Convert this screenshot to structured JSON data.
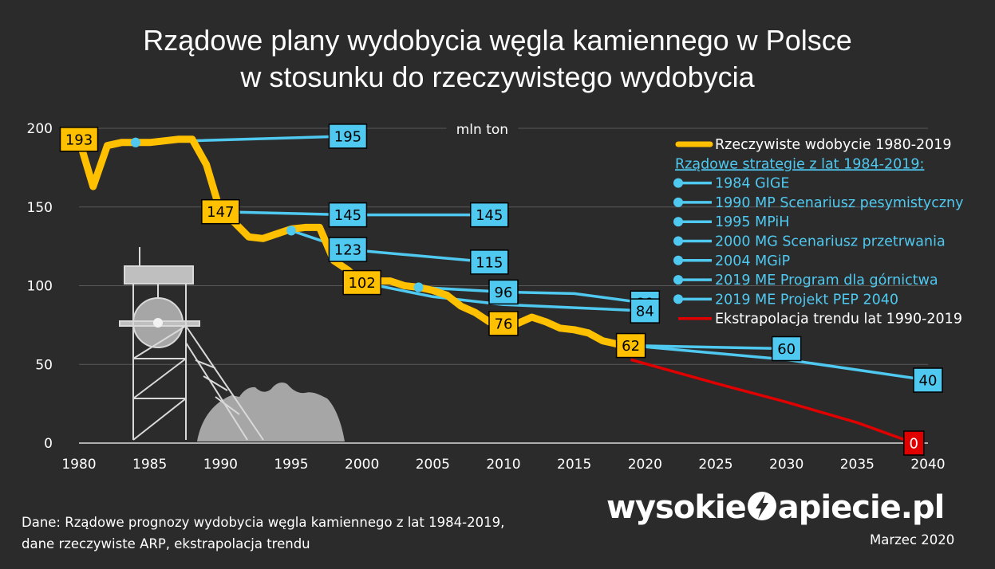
{
  "title_line1": "Rządowe plany wydobycia węgla kamiennego w Polsce",
  "title_line2": "w stosunku do rzeczywistego wydobycia",
  "source_line1": "Dane: Rządowe prognozy wydobycia węgla kamiennego z lat 1984-2019,",
  "source_line2": "dane rzeczywiste ARP, ekstrapolacja trendu",
  "brand_left": "wysokie",
  "brand_right": "apiecie.pl",
  "date": "Marzec 2020",
  "colors": {
    "background": "#2b2b2b",
    "actual": "#ffc000",
    "strategy": "#4fc9f0",
    "extrapolation": "#e00000",
    "grid": "#595959",
    "tower": "#bfbfbf"
  },
  "decor_icons": [
    "mine-shaft-tower-icon",
    "coal-heap-icon",
    "lightning-bolt-icon"
  ],
  "chart_data": {
    "type": "line",
    "title": "Rządowe plany wydobycia węgla kamiennego w Polsce w stosunku do rzeczywistego wydobycia",
    "unit_label": "mln ton",
    "xlim": [
      1980,
      2040
    ],
    "ylim": [
      0,
      200
    ],
    "x_ticks": [
      1980,
      1985,
      1990,
      1995,
      2000,
      2005,
      2010,
      2015,
      2020,
      2025,
      2030,
      2035,
      2040
    ],
    "y_ticks": [
      0,
      50,
      100,
      150,
      200
    ],
    "grid": true,
    "legend_position": "top-right",
    "legend_header": "Rządowe strategie z lat 1984-2019:",
    "series": [
      {
        "name": "Rzeczywiste wdobycie 1980-2019",
        "kind": "actual",
        "color": "#ffc000",
        "x": [
          1980,
          1981,
          1982,
          1983,
          1984,
          1985,
          1986,
          1987,
          1988,
          1989,
          1990,
          1991,
          1992,
          1993,
          1994,
          1995,
          1996,
          1997,
          1998,
          1999,
          2000,
          2001,
          2002,
          2003,
          2004,
          2005,
          2006,
          2007,
          2008,
          2009,
          2010,
          2011,
          2012,
          2013,
          2014,
          2015,
          2016,
          2017,
          2018,
          2019
        ],
        "y": [
          193,
          163,
          189,
          191,
          191,
          191,
          192,
          193,
          193,
          177,
          147,
          140,
          131,
          130,
          133,
          136,
          137,
          137,
          116,
          110,
          102,
          103,
          103,
          100,
          99,
          97,
          94,
          87,
          83,
          77,
          76,
          76,
          80,
          77,
          73,
          72,
          70,
          65,
          63,
          62
        ]
      },
      {
        "name": "1984 GIGE",
        "kind": "strategy",
        "color": "#4fc9f0",
        "x": [
          1984,
          1999
        ],
        "y": [
          191,
          195
        ]
      },
      {
        "name": "1990 MP Scenariusz pesymistyczny",
        "kind": "strategy",
        "color": "#4fc9f0",
        "x": [
          1990,
          1999,
          2009
        ],
        "y": [
          147,
          145,
          145
        ]
      },
      {
        "name": "1995 MPiH",
        "kind": "strategy",
        "color": "#4fc9f0",
        "x": [
          1995,
          1999,
          2009
        ],
        "y": [
          135,
          123,
          115
        ]
      },
      {
        "name": "2000 MG Scenariusz przetrwania",
        "kind": "strategy",
        "color": "#4fc9f0",
        "x": [
          2000,
          2005,
          2010,
          2015,
          2020
        ],
        "y": [
          102,
          93,
          88,
          86,
          84
        ]
      },
      {
        "name": "2004 MGiP",
        "kind": "strategy",
        "color": "#4fc9f0",
        "x": [
          2004,
          2010,
          2015,
          2020
        ],
        "y": [
          99,
          96,
          95,
          89
        ]
      },
      {
        "name": "2019 ME Program dla górnictwa",
        "kind": "strategy",
        "color": "#4fc9f0",
        "x": [
          2019,
          2030
        ],
        "y": [
          62,
          60
        ]
      },
      {
        "name": "2019 ME Projekt PEP 2040",
        "kind": "strategy",
        "color": "#4fc9f0",
        "x": [
          2019,
          2030,
          2040
        ],
        "y": [
          62,
          53,
          40
        ]
      },
      {
        "name": "Ekstrapolacja trendu lat 1990-2019",
        "kind": "extrapolation",
        "color": "#e00000",
        "x": [
          2019,
          2025,
          2030,
          2035,
          2039
        ],
        "y": [
          53,
          38,
          26,
          13,
          0
        ]
      }
    ],
    "data_labels": [
      {
        "text": "193",
        "x": 1980,
        "y": 193,
        "kind": "actual"
      },
      {
        "text": "147",
        "x": 1990,
        "y": 147,
        "kind": "actual"
      },
      {
        "text": "102",
        "x": 2000,
        "y": 102,
        "kind": "actual"
      },
      {
        "text": "76",
        "x": 2010,
        "y": 76,
        "kind": "actual"
      },
      {
        "text": "62",
        "x": 2019,
        "y": 62,
        "kind": "actual"
      },
      {
        "text": "195",
        "x": 1999,
        "y": 195,
        "kind": "strategy"
      },
      {
        "text": "145",
        "x": 1999,
        "y": 145,
        "kind": "strategy"
      },
      {
        "text": "145",
        "x": 2009,
        "y": 145,
        "kind": "strategy"
      },
      {
        "text": "123",
        "x": 1999,
        "y": 123,
        "kind": "strategy"
      },
      {
        "text": "115",
        "x": 2009,
        "y": 115,
        "kind": "strategy"
      },
      {
        "text": "96",
        "x": 2010,
        "y": 96,
        "kind": "strategy"
      },
      {
        "text": "89",
        "x": 2020,
        "y": 89,
        "kind": "strategy"
      },
      {
        "text": "84",
        "x": 2020,
        "y": 84,
        "kind": "strategy"
      },
      {
        "text": "60",
        "x": 2030,
        "y": 60,
        "kind": "strategy"
      },
      {
        "text": "40",
        "x": 2040,
        "y": 40,
        "kind": "strategy"
      },
      {
        "text": "0",
        "x": 2039,
        "y": 0,
        "kind": "extrapolation"
      }
    ]
  }
}
